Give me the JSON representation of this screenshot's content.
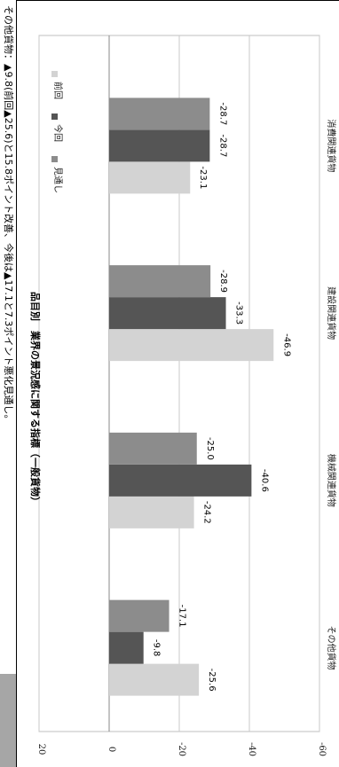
{
  "header": {
    "text": "その他貨物：▲9.8(前回▲25.6)と15.8ポイント改善、今後は▲17.1と7.3ポイント悪化見通し。"
  },
  "colors": {
    "previous": "#d3d3d3",
    "current": "#555555",
    "outlook": "#8c8c8c",
    "grid": "#c8c8c8",
    "side_block": "#a6a6a6"
  },
  "chart_data": {
    "type": "bar",
    "orientation": "vertical (page rotated 90°)",
    "title": "品目別　業界の景況感に関する指標（一般貨物）",
    "categories": [
      "消費関連貨物",
      "建設関連貨物",
      "機械関連貨物",
      "その他貨物"
    ],
    "series": [
      {
        "name": "前回",
        "values": [
          -23.1,
          -46.9,
          -24.2,
          -25.6
        ]
      },
      {
        "name": "今回",
        "values": [
          -28.7,
          -33.3,
          -40.6,
          -9.8
        ]
      },
      {
        "name": "見通し",
        "values": [
          -28.7,
          -28.9,
          -25.0,
          -17.1
        ]
      }
    ],
    "value_labels": [
      [
        "-23.1",
        "-46.9",
        "-24.2",
        "-25.6"
      ],
      [
        "-28.7",
        "-33.3",
        "-40.6",
        "-9.8"
      ],
      [
        "-28.7",
        "-28.9",
        "-25.0",
        "-17.1"
      ]
    ],
    "ylim": [
      -60,
      20
    ],
    "yticks": [
      20,
      0,
      -20,
      -40,
      -60
    ],
    "ytick_labels": [
      "20",
      "0",
      "-20",
      "-40",
      "-60"
    ],
    "grid": true,
    "legend_position": "top-left"
  }
}
